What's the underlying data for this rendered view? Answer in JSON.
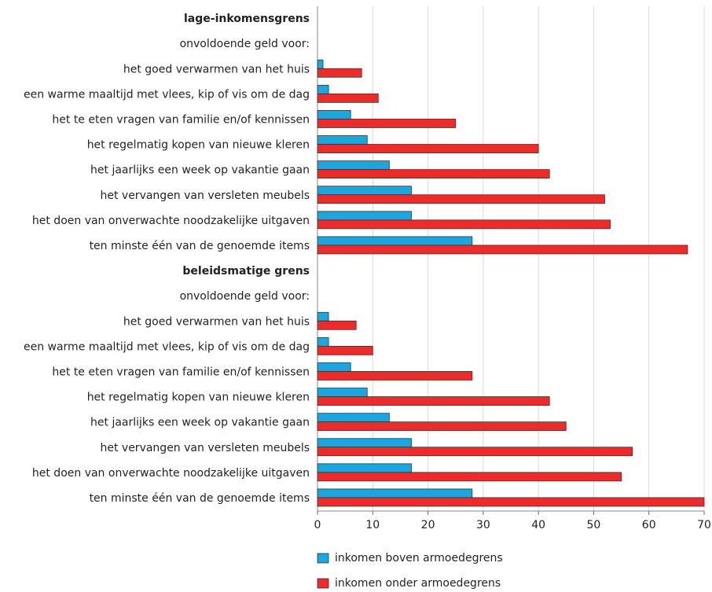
{
  "chart_data": {
    "type": "hbar",
    "categories": [
      "lage-inkomensgrens",
      "onvoldoende geld voor:",
      "het goed verwarmen van het huis",
      "een warme maaltijd met vlees, kip of vis om de dag",
      "het te eten vragen van familie en/of kennissen",
      "het regelmatig kopen van nieuwe kleren",
      "het jaarlijks een week op vakantie gaan",
      "het vervangen van versleten meubels",
      "het doen van onverwachte noodzakelijke uitgaven",
      "ten minste één van de genoemde items",
      "beleidsmatige grens",
      "onvoldoende geld voor:",
      "het goed verwarmen van het huis",
      "een warme maaltijd met vlees, kip of vis om de dag",
      "het te eten vragen van familie en/of kennissen",
      "het regelmatig kopen van nieuwe kleren",
      "het jaarlijks een week op vakantie gaan",
      "het vervangen van versleten meubels",
      "het doen van onverwachte noodzakelijke uitgaven",
      "ten minste één van de genoemde items"
    ],
    "bold_categories": [
      0,
      10
    ],
    "series": [
      {
        "name": "inkomen boven armoedegrens",
        "color": "#1ba6e0",
        "values": [
          null,
          null,
          1,
          2,
          6,
          9,
          13,
          17,
          17,
          28,
          null,
          null,
          2,
          2,
          6,
          9,
          13,
          17,
          17,
          28
        ]
      },
      {
        "name": "inkomen onder armoedegrens",
        "color": "#ee2b2b",
        "values": [
          null,
          null,
          8,
          11,
          25,
          40,
          42,
          52,
          53,
          67,
          null,
          null,
          7,
          10,
          28,
          42,
          45,
          57,
          55,
          70
        ]
      }
    ],
    "xlim": [
      0,
      70
    ],
    "xticks": [
      0,
      10,
      20,
      30,
      40,
      50,
      60,
      70
    ],
    "grid": true
  }
}
